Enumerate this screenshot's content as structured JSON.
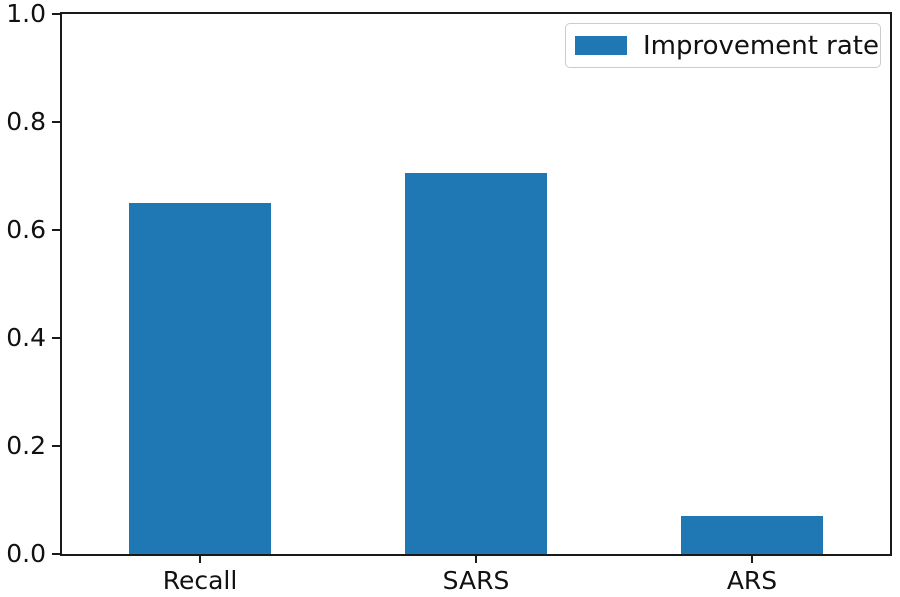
{
  "chart_data": {
    "type": "bar",
    "title": "",
    "xlabel": "",
    "ylabel": "",
    "categories": [
      "Recall",
      "SARS",
      "ARS"
    ],
    "series": [
      {
        "name": "Improvement rate",
        "values": [
          0.65,
          0.705,
          0.07
        ]
      }
    ],
    "legend": {
      "label": "Improvement rate",
      "position": "upper right"
    },
    "ylim": [
      0.0,
      1.0
    ],
    "yticks": [
      0.0,
      0.2,
      0.4,
      0.6,
      0.8,
      1.0
    ],
    "ytick_labels": [
      "0.0",
      "0.2",
      "0.4",
      "0.6",
      "0.8",
      "1.0"
    ],
    "grid": false,
    "colors": {
      "bar": "#1f77b4",
      "axis": "#1a1a1a",
      "text": "#111111",
      "legend_border": "#cccccc",
      "background": "#ffffff"
    }
  }
}
